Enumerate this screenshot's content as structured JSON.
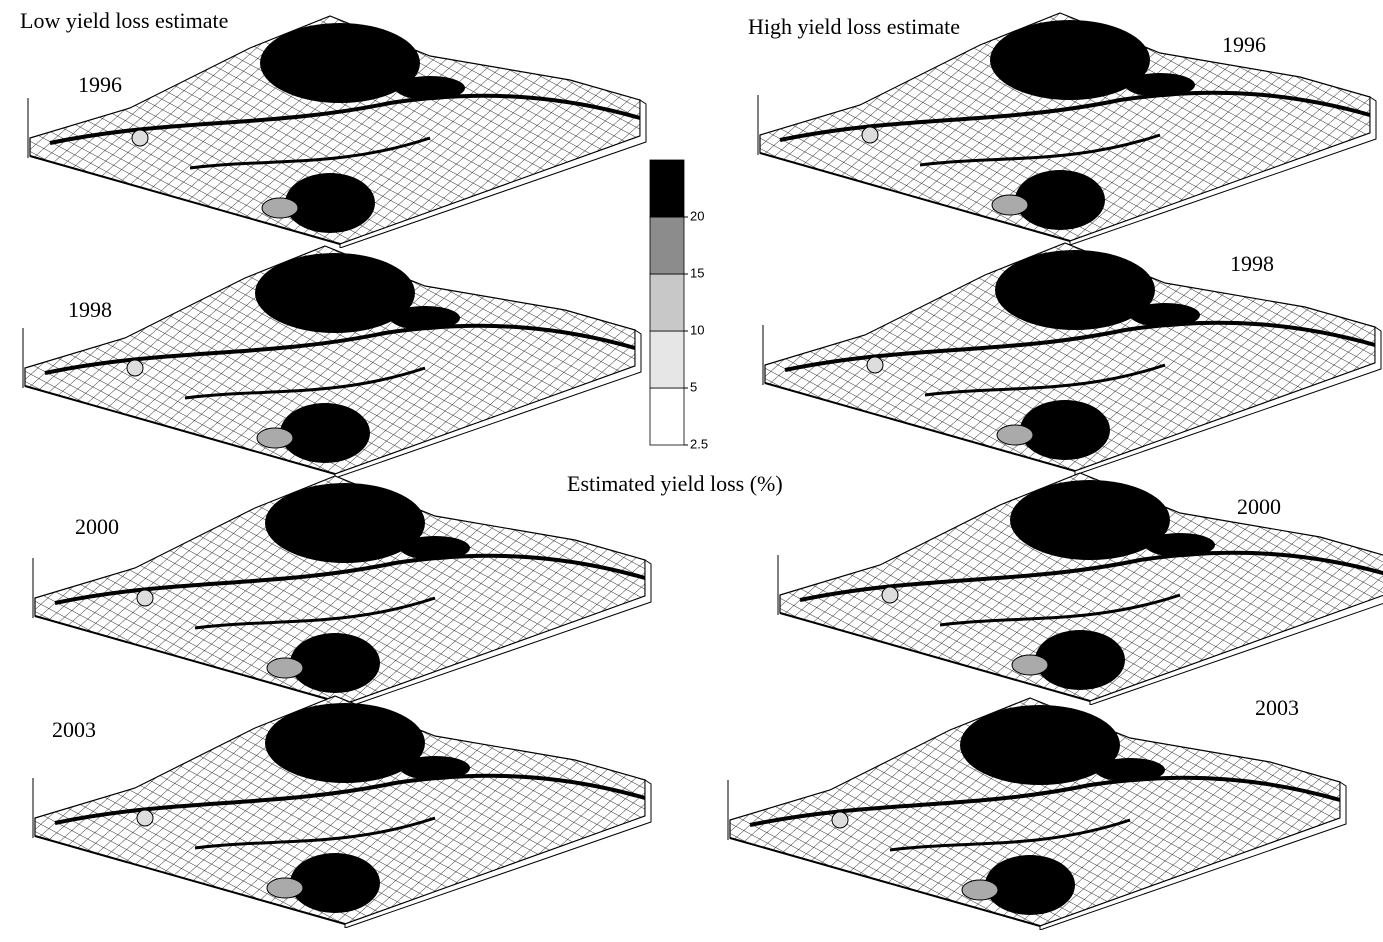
{
  "header": {
    "left_title": "Low yield loss estimate",
    "right_title": "High yield loss estimate"
  },
  "panels": [
    {
      "label": "1996"
    },
    {
      "label": "1998"
    },
    {
      "label": "2000"
    },
    {
      "label": "2003"
    },
    {
      "label": "1996"
    },
    {
      "label": "1998"
    },
    {
      "label": "2000"
    },
    {
      "label": "2003"
    }
  ],
  "colorbar": {
    "title": "Estimated yield loss (%)",
    "ticks": [
      2.5,
      5,
      10,
      15,
      20
    ],
    "colors": [
      "#ffffff",
      "#e6e6e6",
      "#c8c8c8",
      "#8c8c8c",
      "#000000"
    ]
  }
}
